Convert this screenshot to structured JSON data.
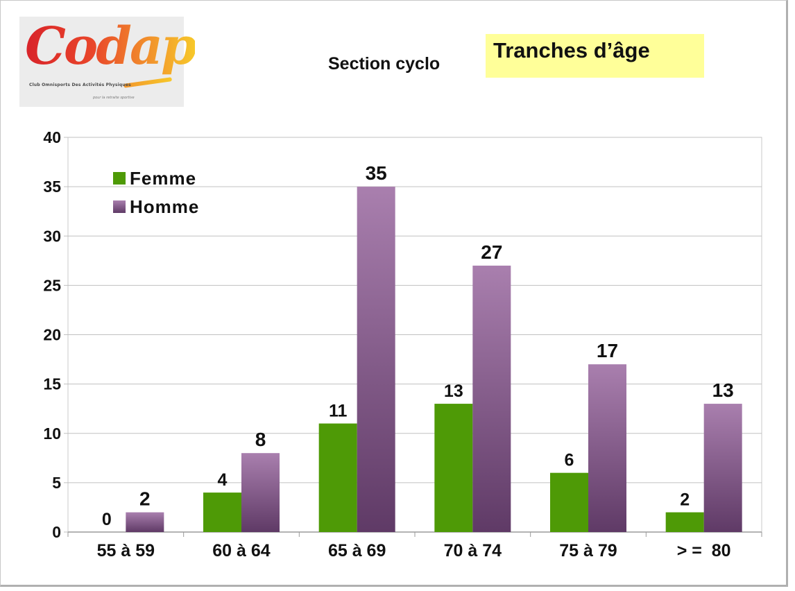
{
  "header": {
    "logo_text": "Codap",
    "logo_subtitle": "Club Omnisports Des Activités Physiques",
    "logo_tagline": "pour la retraite sportive",
    "section": "Section cyclo",
    "title": "Tranches d’âge"
  },
  "chart_data": {
    "type": "bar",
    "title": "Tranches d’âge",
    "xlabel": "",
    "ylabel": "",
    "categories": [
      "55 à 59",
      "60 à 64",
      "65 à 69",
      "70 à 74",
      "75 à 79",
      "> =  80"
    ],
    "series": [
      {
        "name": "Femme",
        "values": [
          0,
          4,
          11,
          13,
          6,
          2
        ],
        "color": "#4e9a06"
      },
      {
        "name": "Homme",
        "values": [
          2,
          8,
          35,
          27,
          17,
          13
        ],
        "color": "#8b5f8e"
      }
    ],
    "ylim": [
      0,
      40
    ],
    "yticks": [
      0,
      5,
      10,
      15,
      20,
      25,
      30,
      35,
      40
    ],
    "grid": true,
    "legend": "top-left",
    "colors": {
      "femme": "#4e9a06",
      "homme_top": "#a97fae",
      "homme_bottom": "#5f3a66",
      "grid": "#c0c0c0"
    }
  }
}
